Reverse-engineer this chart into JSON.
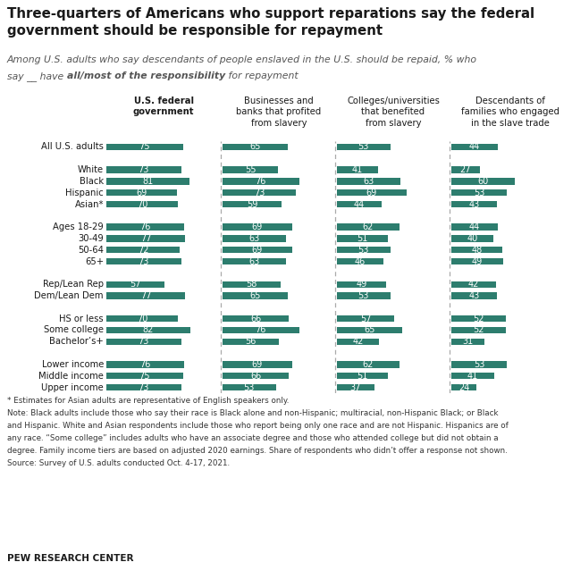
{
  "title": "Three-quarters of Americans who support reparations say the federal\ngovernment should be responsible for repayment",
  "line1": "Among U.S. adults who say descendants of people enslaved in the U.S. should be repaid, % who",
  "line2_a": "say __ have ",
  "line2_b": "all/most of the responsibility",
  "line2_c": " for repayment",
  "col_headers": [
    "U.S. federal\ngovernment",
    "Businesses and\nbanks that profited\nfrom slavery",
    "Colleges/universities\nthat benefited\nfrom slavery",
    "Descendants of\nfamilies who engaged\nin the slave trade"
  ],
  "row_labels": [
    "All U.S. adults",
    "",
    "White",
    "Black",
    "Hispanic",
    "Asian*",
    "",
    "Ages 18-29",
    "30-49",
    "50-64",
    "65+",
    "",
    "Rep/Lean Rep",
    "Dem/Lean Dem",
    "",
    "HS or less",
    "Some college",
    "Bachelor’s+",
    "",
    "Lower income",
    "Middle income",
    "Upper income"
  ],
  "data": [
    [
      75,
      65,
      53,
      44
    ],
    [
      null,
      null,
      null,
      null
    ],
    [
      73,
      55,
      41,
      27
    ],
    [
      81,
      76,
      63,
      60
    ],
    [
      69,
      73,
      69,
      53
    ],
    [
      70,
      59,
      44,
      43
    ],
    [
      null,
      null,
      null,
      null
    ],
    [
      76,
      69,
      62,
      44
    ],
    [
      77,
      63,
      51,
      40
    ],
    [
      72,
      69,
      53,
      48
    ],
    [
      73,
      63,
      46,
      49
    ],
    [
      null,
      null,
      null,
      null
    ],
    [
      57,
      58,
      49,
      42
    ],
    [
      77,
      65,
      53,
      43
    ],
    [
      null,
      null,
      null,
      null
    ],
    [
      70,
      66,
      57,
      52
    ],
    [
      82,
      76,
      65,
      52
    ],
    [
      73,
      56,
      42,
      31
    ],
    [
      null,
      null,
      null,
      null
    ],
    [
      76,
      69,
      62,
      53
    ],
    [
      75,
      66,
      51,
      41
    ],
    [
      73,
      53,
      37,
      24
    ]
  ],
  "bar_color": "#2d7d6e",
  "footnote1": "* Estimates for Asian adults are representative of English speakers only.",
  "footnote2": "Note: Black adults include those who say their race is Black alone and non-Hispanic; multiracial, non-Hispanic Black; or Black",
  "footnote3": "and Hispanic. White and Asian respondents include those who report being only one race and are not Hispanic. Hispanics are of",
  "footnote4": "any race. “Some college” includes adults who have an associate degree and those who attended college but did not obtain a",
  "footnote5": "degree. Family income tiers are based on adjusted 2020 earnings. Share of respondents who didn’t offer a response not shown.",
  "footnote6": "Source: Survey of U.S. adults conducted Oct. 4-17, 2021.",
  "source_label": "PEW RESEARCH CENTER",
  "background_color": "#ffffff",
  "text_color": "#1a1a1a",
  "gray_text": "#555555"
}
